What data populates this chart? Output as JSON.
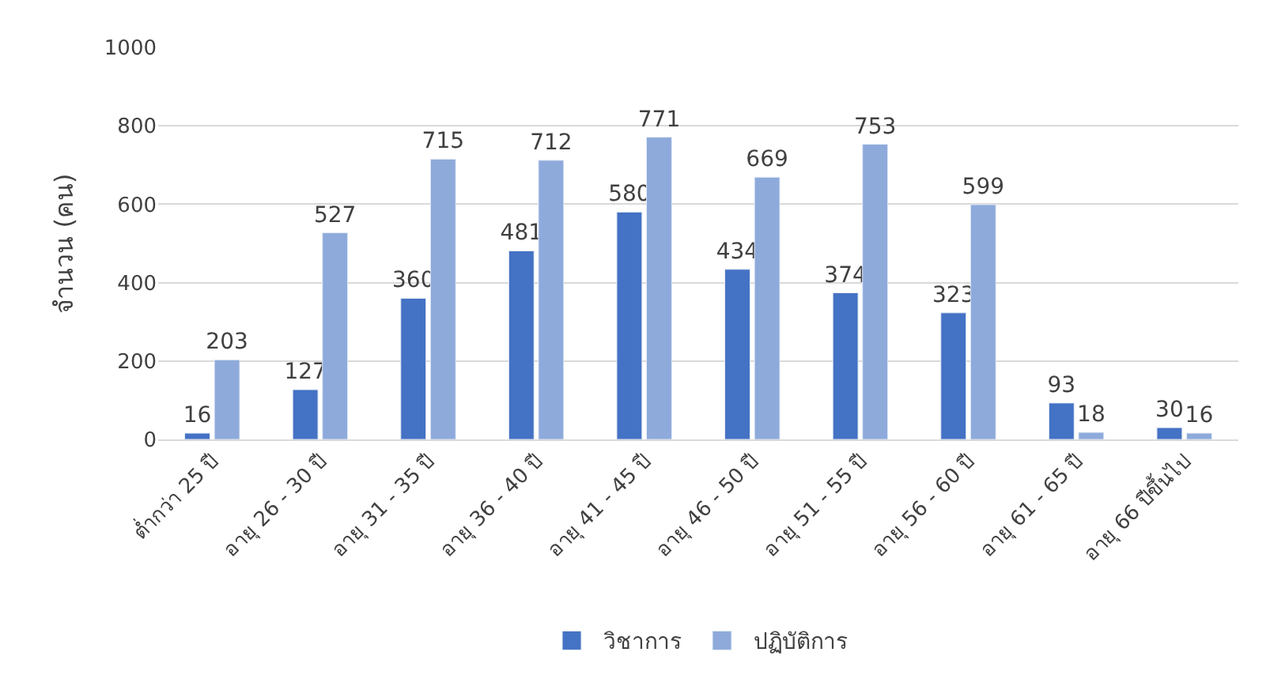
{
  "chart_data": {
    "type": "bar",
    "ylabel": "จำนวน (คน)",
    "categories": [
      "ต่ำกว่า 25 ปี",
      "อายุ 26 - 30 ปี",
      "อายุ 31 - 35 ปี",
      "อายุ 36 - 40 ปี",
      "อายุ 41 - 45 ปี",
      "อายุ 46 - 50 ปี",
      "อายุ 51 - 55 ปี",
      "อายุ 56 - 60 ปี",
      "อายุ 61 - 65 ปี",
      "อายุ 66 ปีขึ้นไป"
    ],
    "series": [
      {
        "name": "วิชาการ",
        "color": "#4472c4",
        "values": [
          16,
          127,
          360,
          481,
          580,
          434,
          374,
          323,
          93,
          30
        ]
      },
      {
        "name": "ปฏิบัติการ",
        "color": "#8eaadb",
        "values": [
          203,
          527,
          715,
          712,
          771,
          669,
          753,
          599,
          18,
          16
        ]
      }
    ],
    "ylim": [
      0,
      1000
    ],
    "yticks": [
      0,
      200,
      400,
      600,
      800,
      1000
    ],
    "grid": "y",
    "legend": "bottom",
    "data_labels": true
  }
}
